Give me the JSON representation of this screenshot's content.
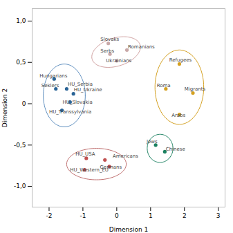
{
  "chart_data": {
    "type": "scatter",
    "xlabel": "Dimension 1",
    "ylabel": "Dimension 2",
    "xlim": [
      -2.5,
      3.2
    ],
    "ylim": [
      -1.25,
      1.15
    ],
    "xticks": [
      -2,
      -1,
      0,
      1,
      2,
      3
    ],
    "yticks": [
      {
        "value": -1.0,
        "label": "-1,0"
      },
      {
        "value": -0.5,
        "label": "-0,5"
      },
      0,
      {
        "value": 0.5,
        "label": "0,5"
      },
      {
        "value": 1.0,
        "label": "1,0"
      }
    ],
    "grid": false,
    "points": [
      {
        "x": -0.25,
        "y": 0.73,
        "color": "#c8a8a8"
      },
      {
        "x": 0.3,
        "y": 0.65,
        "color": "#c8a8a8"
      },
      {
        "x": -0.2,
        "y": 0.6,
        "color": "#c8a8a8"
      },
      {
        "x": 0.0,
        "y": 0.52,
        "color": "#c8a8a8"
      },
      {
        "x": -1.85,
        "y": 0.3,
        "color": "#2a6496"
      },
      {
        "x": -1.8,
        "y": 0.18,
        "color": "#2a6496"
      },
      {
        "x": -1.48,
        "y": 0.18,
        "color": "#2a6496"
      },
      {
        "x": -1.28,
        "y": 0.12,
        "color": "#2a6496"
      },
      {
        "x": -1.38,
        "y": 0.02,
        "color": "#2a6496"
      },
      {
        "x": -1.62,
        "y": -0.08,
        "color": "#2a6496"
      },
      {
        "x": 1.85,
        "y": 0.48,
        "color": "#d4a020"
      },
      {
        "x": 1.45,
        "y": 0.18,
        "color": "#d4a020"
      },
      {
        "x": 2.25,
        "y": 0.13,
        "color": "#d4a020"
      },
      {
        "x": 1.85,
        "y": -0.13,
        "color": "#d4a020"
      },
      {
        "x": 1.15,
        "y": -0.5,
        "color": "#1a8060"
      },
      {
        "x": 1.42,
        "y": -0.58,
        "color": "#1a8060"
      },
      {
        "x": -0.9,
        "y": -0.66,
        "color": "#c05050"
      },
      {
        "x": -0.35,
        "y": -0.68,
        "color": "#c05050"
      },
      {
        "x": -0.22,
        "y": -0.76,
        "color": "#c05050"
      },
      {
        "x": -0.95,
        "y": -0.8,
        "color": "#c05050"
      }
    ],
    "annotations": [
      {
        "text": "Slovaks",
        "x": -0.48,
        "y": 0.76
      },
      {
        "text": "Romanians",
        "x": 0.33,
        "y": 0.67
      },
      {
        "text": "Serbs",
        "x": -0.48,
        "y": 0.62
      },
      {
        "text": "Ukrainians",
        "x": -0.32,
        "y": 0.5
      },
      {
        "text": "Hungarians",
        "x": -2.28,
        "y": 0.32
      },
      {
        "text": "Seklers",
        "x": -2.23,
        "y": 0.2
      },
      {
        "text": "HU_Serbia",
        "x": -1.45,
        "y": 0.22
      },
      {
        "text": "HU_Ukraine",
        "x": -1.27,
        "y": 0.15
      },
      {
        "text": "HU_Slovakia",
        "x": -1.6,
        "y": 0.0
      },
      {
        "text": "HU_Transsylvania",
        "x": -2.0,
        "y": -0.12
      },
      {
        "text": "Refugees",
        "x": 1.55,
        "y": 0.51
      },
      {
        "text": "Roma",
        "x": 1.18,
        "y": 0.2
      },
      {
        "text": "Migrants",
        "x": 2.0,
        "y": 0.16
      },
      {
        "text": "Arabs",
        "x": 1.62,
        "y": -0.16
      },
      {
        "text": "Jews",
        "x": 0.88,
        "y": -0.48
      },
      {
        "text": "Chinese",
        "x": 1.45,
        "y": -0.57
      },
      {
        "text": "HU_USA",
        "x": -1.22,
        "y": -0.63
      },
      {
        "text": "Americans",
        "x": -0.12,
        "y": -0.65
      },
      {
        "text": "Germans",
        "x": -0.5,
        "y": -0.79
      },
      {
        "text": "HU_Western_EU",
        "x": -1.38,
        "y": -0.82
      }
    ],
    "ellipses": [
      {
        "cx": -0.02,
        "cy": 0.625,
        "rx": 0.72,
        "ry": 0.175,
        "color": "#d0a0a0",
        "angle": 5
      },
      {
        "cx": -1.55,
        "cy": 0.1,
        "rx": 0.62,
        "ry": 0.38,
        "color": "#6090c0",
        "angle": 0
      },
      {
        "cx": 1.85,
        "cy": 0.2,
        "rx": 0.72,
        "ry": 0.45,
        "color": "#d4a020",
        "angle": 0
      },
      {
        "cx": 1.28,
        "cy": -0.54,
        "rx": 0.38,
        "ry": 0.17,
        "color": "#1a8060",
        "angle": 0
      },
      {
        "cx": -0.6,
        "cy": -0.73,
        "rx": 0.88,
        "ry": 0.19,
        "color": "#c07070",
        "angle": 0
      }
    ]
  }
}
